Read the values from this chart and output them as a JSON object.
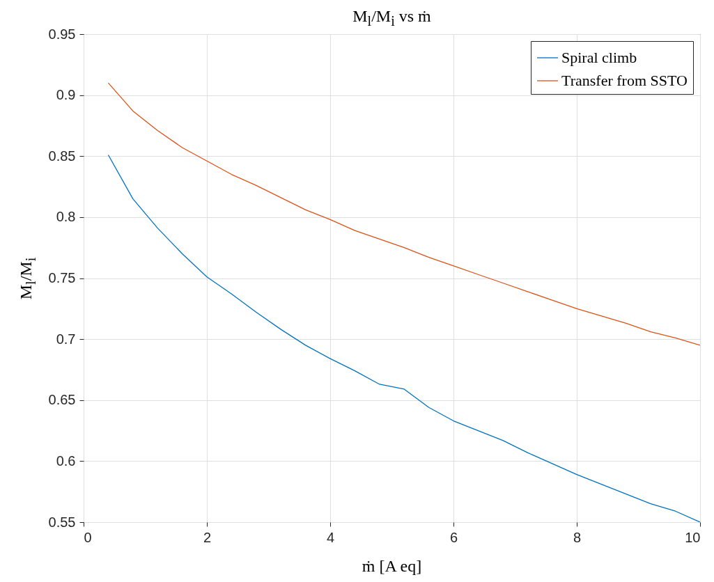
{
  "chart_data": {
    "type": "line",
    "title": "M$_{l}$/M$_{i}$ vs ṁ",
    "xlabel": "ṁ [A eq]",
    "ylabel": "M$_{l}$/M$_{i}$",
    "x": [
      0.4,
      0.8,
      1.2,
      1.6,
      2.0,
      2.4,
      2.8,
      3.2,
      3.6,
      4.0,
      4.4,
      4.8,
      5.2,
      5.6,
      6.0,
      6.4,
      6.8,
      7.2,
      7.6,
      8.0,
      8.4,
      8.8,
      9.2,
      9.6,
      10
    ],
    "series": [
      {
        "name": "Spiral climb",
        "color": "#0072bd",
        "values": [
          0.851,
          0.815,
          0.791,
          0.77,
          0.751,
          0.737,
          0.722,
          0.708,
          0.695,
          0.684,
          0.674,
          0.663,
          0.659,
          0.644,
          0.633,
          0.625,
          0.617,
          0.607,
          0.598,
          0.589,
          0.581,
          0.573,
          0.565,
          0.559,
          0.55
        ]
      },
      {
        "name": "Transfer from SSTO",
        "color": "#d95319",
        "values": [
          0.91,
          0.887,
          0.871,
          0.857,
          0.846,
          0.835,
          0.826,
          0.816,
          0.806,
          0.798,
          0.789,
          0.782,
          0.775,
          0.767,
          0.76,
          0.753,
          0.746,
          0.739,
          0.732,
          0.725,
          0.719,
          0.713,
          0.706,
          0.701,
          0.695
        ]
      }
    ],
    "xlim": [
      0,
      10
    ],
    "xticks": [
      0,
      2,
      4,
      6,
      8,
      10
    ],
    "ylim": [
      0.55,
      0.95
    ],
    "yticks": [
      0.55,
      0.6,
      0.65,
      0.7,
      0.75,
      0.8,
      0.85,
      0.9,
      0.95
    ],
    "grid": true,
    "legend": "top right",
    "line_style": "solid"
  }
}
